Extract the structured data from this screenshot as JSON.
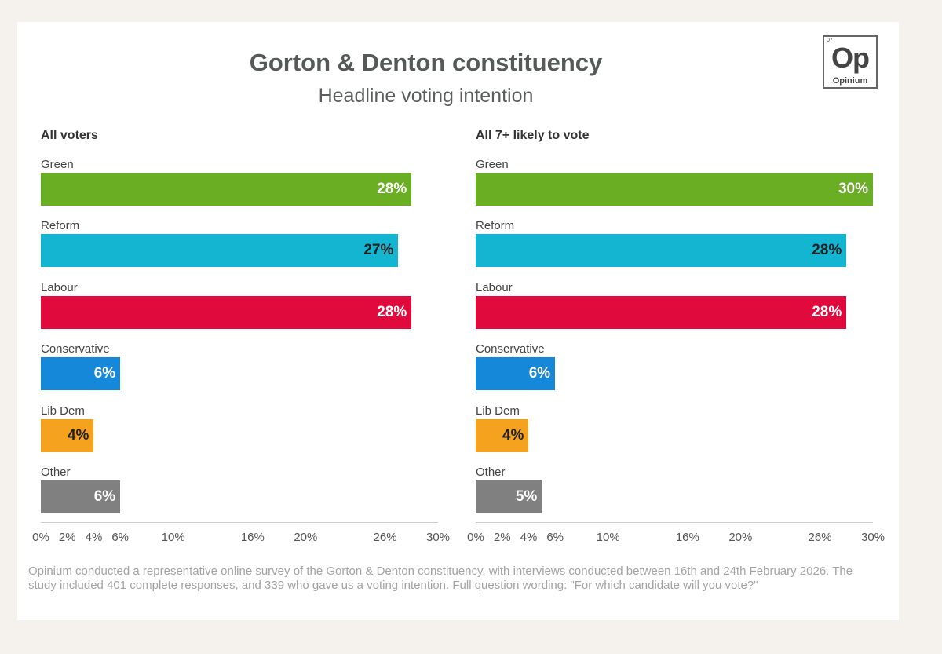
{
  "title": "Gorton & Denton constituency",
  "subtitle": "Headline voting intention",
  "logo": {
    "number": "07",
    "symbol": "Op",
    "name": "Opinium"
  },
  "footnote": "Opinium conducted a representative online survey of the Gorton & Denton constituency, with interviews conducted between 16th and 24th February 2026. The study included 401 complete responses, and 339 who gave us a voting intention. Full question wording: \"For which candidate will you vote?\"",
  "chart_data": [
    {
      "type": "bar",
      "orientation": "horizontal",
      "title": "All voters",
      "categories": [
        "Green",
        "Reform",
        "Labour",
        "Conservative",
        "Lib Dem",
        "Other"
      ],
      "values": [
        28,
        27,
        28,
        6,
        4,
        6
      ],
      "labels": [
        "28%",
        "27%",
        "28%",
        "6%",
        "4%",
        "6%"
      ],
      "colors": [
        "#6aaf23",
        "#13b5d0",
        "#e10a3c",
        "#1588d9",
        "#f5a21f",
        "#808080"
      ],
      "xlim": [
        0,
        30
      ],
      "xticks": [
        0,
        2,
        4,
        6,
        10,
        16,
        20,
        26,
        30
      ],
      "xtick_labels": [
        "0%",
        "2%",
        "4%",
        "6%",
        "10%",
        "16%",
        "20%",
        "26%",
        "30%"
      ],
      "grid": false
    },
    {
      "type": "bar",
      "orientation": "horizontal",
      "title": "All 7+ likely to vote",
      "categories": [
        "Green",
        "Reform",
        "Labour",
        "Conservative",
        "Lib Dem",
        "Other"
      ],
      "values": [
        30,
        28,
        28,
        6,
        4,
        5
      ],
      "labels": [
        "30%",
        "28%",
        "28%",
        "6%",
        "4%",
        "5%"
      ],
      "colors": [
        "#6aaf23",
        "#13b5d0",
        "#e10a3c",
        "#1588d9",
        "#f5a21f",
        "#808080"
      ],
      "xlim": [
        0,
        30
      ],
      "xticks": [
        0,
        2,
        4,
        6,
        10,
        16,
        20,
        26,
        30
      ],
      "xtick_labels": [
        "0%",
        "2%",
        "4%",
        "6%",
        "10%",
        "16%",
        "20%",
        "26%",
        "30%"
      ],
      "grid": false
    }
  ]
}
